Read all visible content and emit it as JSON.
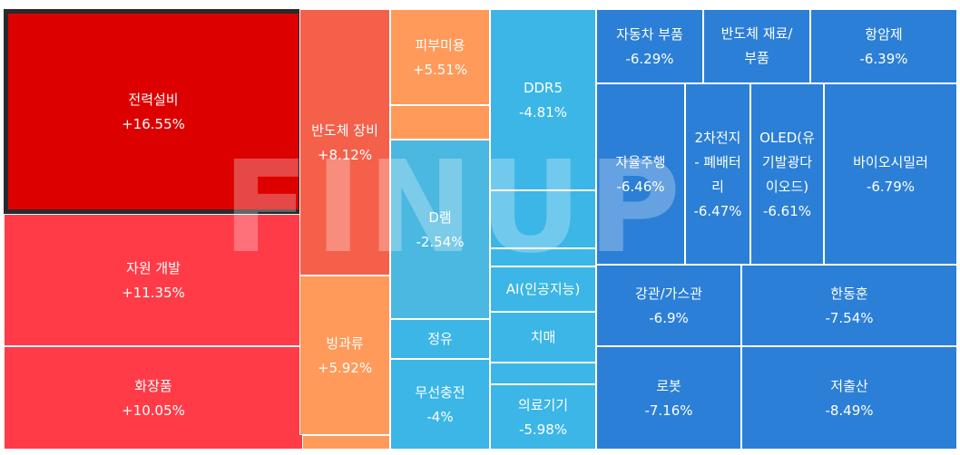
{
  "watermark": "FINUP",
  "colors": {
    "red_dark": "#dd0000",
    "red": "#ff3b47",
    "red_orange": "#f5604b",
    "orange": "#ff9a5a",
    "sky": "#3bb6e6",
    "light_blue": "#4ab8e0",
    "blue": "#2b7fd6",
    "medium_blue": "#2f8ad8"
  },
  "tiles": [
    {
      "name": "전력설비",
      "change": "+16.55%",
      "color": "#dd0000",
      "selected": true
    },
    {
      "name": "자원 개발",
      "change": "+11.35%",
      "color": "#ff3b47"
    },
    {
      "name": "화장품",
      "change": "+10.05%",
      "color": "#ff3b47"
    },
    {
      "name": "반도체 장비",
      "change": "+8.12%",
      "color": "#f5604b"
    },
    {
      "name": "빙과류",
      "change": "+5.92%",
      "color": "#ff9a5a"
    },
    {
      "name": "피부미용",
      "change": "+5.51%",
      "color": "#ff9a5a"
    },
    {
      "name": "D램",
      "change": "-2.54%",
      "color": "#4ab8e0"
    },
    {
      "name": "정유",
      "change": "",
      "color": "#3bb6e6"
    },
    {
      "name": "무선충전",
      "change": "-4%",
      "color": "#3bb6e6"
    },
    {
      "name": "DDR5",
      "change": "-4.81%",
      "color": "#3bb6e6"
    },
    {
      "name": "AI(인공지능)",
      "change": "",
      "color": "#3bb6e6"
    },
    {
      "name": "치매",
      "change": "",
      "color": "#3bb6e6"
    },
    {
      "name": "의료기기",
      "change": "-5.98%",
      "color": "#3bb6e6"
    },
    {
      "name": "자동차 부품",
      "change": "-6.29%",
      "color": "#2b7fd6"
    },
    {
      "name": "반도체 재료/\n부품",
      "change": "",
      "color": "#2b7fd6"
    },
    {
      "name": "항암제",
      "change": "-6.39%",
      "color": "#2b7fd6"
    },
    {
      "name": "자율주행",
      "change": "-6.46%",
      "color": "#2b7fd6"
    },
    {
      "name": "2차전지\n- 폐배터\n리",
      "change": "-6.47%",
      "color": "#2b7fd6"
    },
    {
      "name": "OLED(유\n기발광다\n이오드)",
      "change": "-6.61%",
      "color": "#2b7fd6"
    },
    {
      "name": "바이오시밀러",
      "change": "-6.79%",
      "color": "#2b7fd6"
    },
    {
      "name": "강관/가스관",
      "change": "-6.9%",
      "color": "#2b7fd6"
    },
    {
      "name": "한동훈",
      "change": "-7.54%",
      "color": "#2b7fd6"
    },
    {
      "name": "로봇",
      "change": "-7.16%",
      "color": "#2b7fd6"
    },
    {
      "name": "저출산",
      "change": "-8.49%",
      "color": "#2b7fd6"
    }
  ],
  "filler_tiles": [
    {
      "color": "#f5604b"
    },
    {
      "color": "#ff9a5a"
    },
    {
      "color": "#ff9a5a"
    },
    {
      "color": "#3bb6e6"
    },
    {
      "color": "#3bb6e6"
    },
    {
      "color": "#3bb6e6"
    },
    {
      "color": "#3bb6e6"
    },
    {
      "color": "#3bb6e6"
    },
    {
      "color": "#3bb6e6"
    },
    {
      "color": "#3bb6e6"
    }
  ]
}
